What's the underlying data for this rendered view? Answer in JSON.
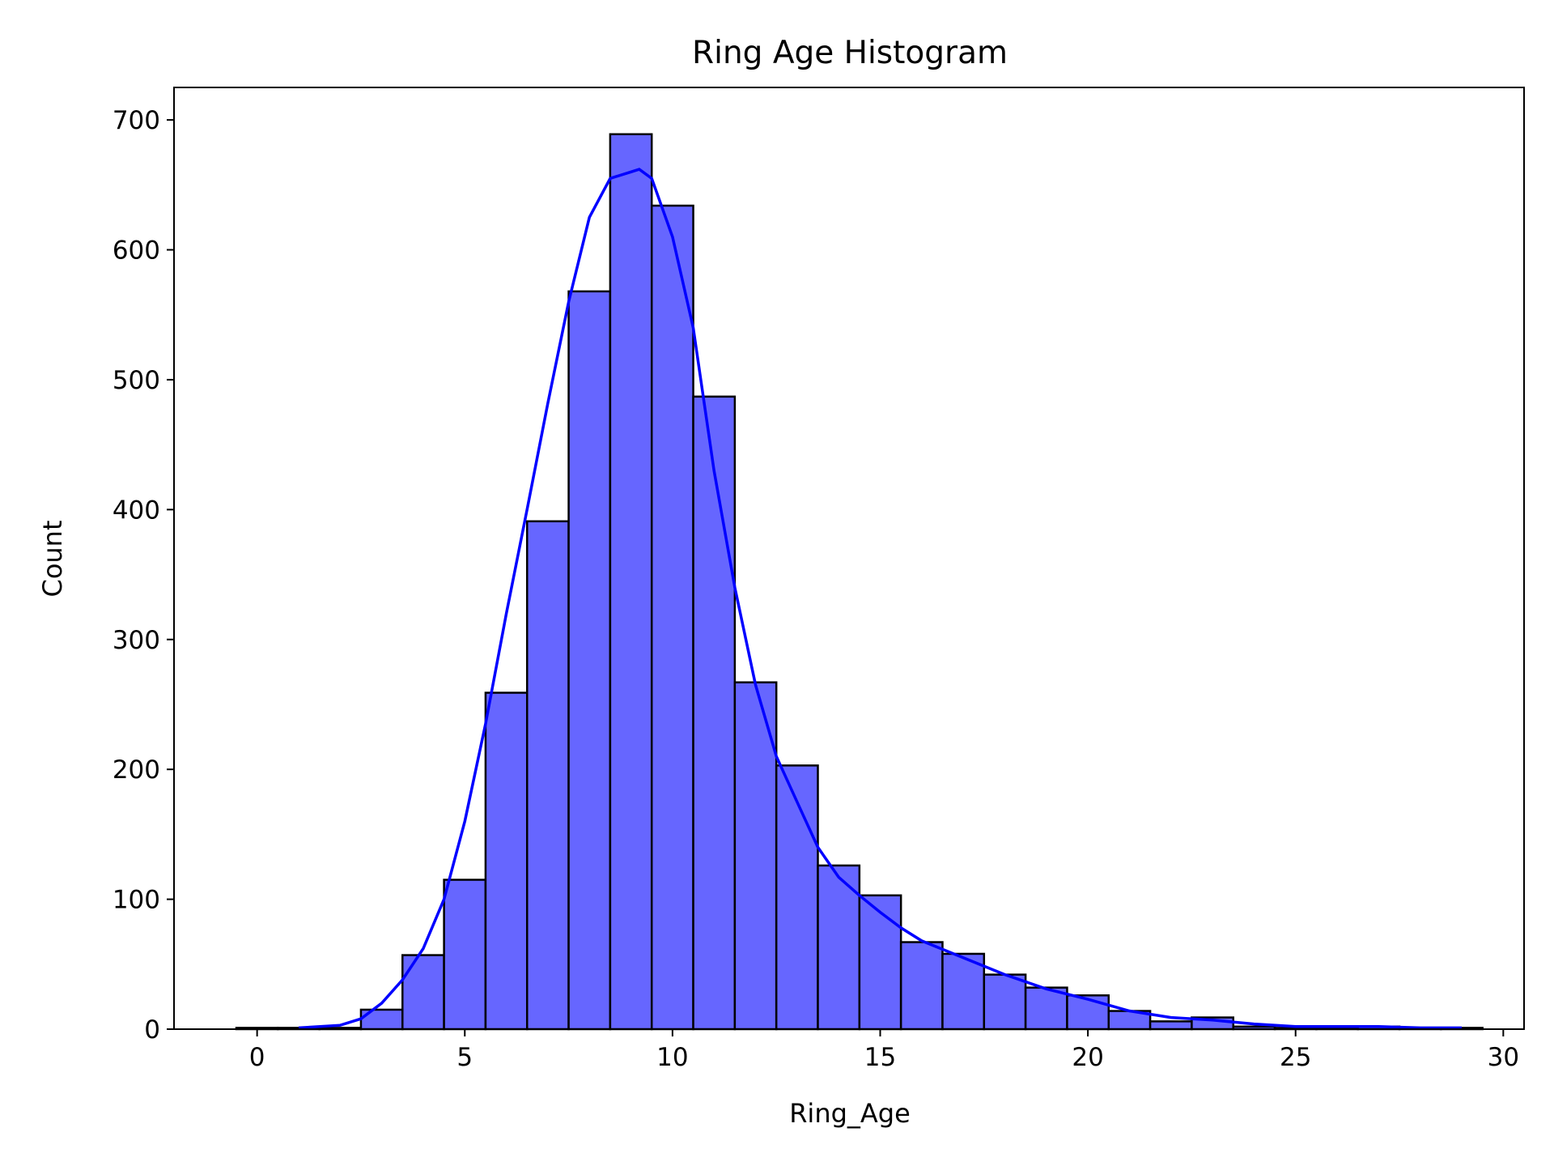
{
  "chart_data": {
    "type": "bar",
    "title": "Ring Age Histogram",
    "xlabel": "Ring_Age",
    "ylabel": "Count",
    "xlim": [
      -2,
      30.5
    ],
    "ylim": [
      0,
      725
    ],
    "xticks": [
      0,
      5,
      10,
      15,
      20,
      25,
      30
    ],
    "yticks": [
      0,
      100,
      200,
      300,
      400,
      500,
      600,
      700
    ],
    "grid": false,
    "bin_width": 1,
    "bins": [
      {
        "x0": -0.5,
        "x1": 0.5,
        "count": 1
      },
      {
        "x0": 0.5,
        "x1": 1.5,
        "count": 1
      },
      {
        "x0": 1.5,
        "x1": 2.5,
        "count": 1
      },
      {
        "x0": 2.5,
        "x1": 3.5,
        "count": 15
      },
      {
        "x0": 3.5,
        "x1": 4.5,
        "count": 57
      },
      {
        "x0": 4.5,
        "x1": 5.5,
        "count": 115
      },
      {
        "x0": 5.5,
        "x1": 6.5,
        "count": 259
      },
      {
        "x0": 6.5,
        "x1": 7.5,
        "count": 391
      },
      {
        "x0": 7.5,
        "x1": 8.5,
        "count": 568
      },
      {
        "x0": 8.5,
        "x1": 9.5,
        "count": 689
      },
      {
        "x0": 9.5,
        "x1": 10.5,
        "count": 634
      },
      {
        "x0": 10.5,
        "x1": 11.5,
        "count": 487
      },
      {
        "x0": 11.5,
        "x1": 12.5,
        "count": 267
      },
      {
        "x0": 12.5,
        "x1": 13.5,
        "count": 203
      },
      {
        "x0": 13.5,
        "x1": 14.5,
        "count": 126
      },
      {
        "x0": 14.5,
        "x1": 15.5,
        "count": 103
      },
      {
        "x0": 15.5,
        "x1": 16.5,
        "count": 67
      },
      {
        "x0": 16.5,
        "x1": 17.5,
        "count": 58
      },
      {
        "x0": 17.5,
        "x1": 18.5,
        "count": 42
      },
      {
        "x0": 18.5,
        "x1": 19.5,
        "count": 32
      },
      {
        "x0": 19.5,
        "x1": 20.5,
        "count": 26
      },
      {
        "x0": 20.5,
        "x1": 21.5,
        "count": 14
      },
      {
        "x0": 21.5,
        "x1": 22.5,
        "count": 6
      },
      {
        "x0": 22.5,
        "x1": 23.5,
        "count": 9
      },
      {
        "x0": 23.5,
        "x1": 24.5,
        "count": 2
      },
      {
        "x0": 24.5,
        "x1": 25.5,
        "count": 1
      },
      {
        "x0": 25.5,
        "x1": 26.5,
        "count": 1
      },
      {
        "x0": 26.5,
        "x1": 27.5,
        "count": 2
      },
      {
        "x0": 27.5,
        "x1": 28.5,
        "count": 1
      },
      {
        "x0": 28.5,
        "x1": 29.5,
        "count": 1
      }
    ],
    "kde": {
      "color": "#0000ff",
      "x": [
        1.0,
        2.0,
        2.5,
        3.0,
        3.5,
        4.0,
        4.5,
        5.0,
        5.5,
        6.0,
        6.5,
        7.0,
        7.5,
        8.0,
        8.5,
        9.0,
        9.2,
        9.5,
        10.0,
        10.5,
        11.0,
        11.5,
        12.0,
        12.5,
        13.0,
        13.5,
        14.0,
        14.5,
        15.0,
        15.5,
        16.0,
        17.0,
        18.0,
        19.0,
        20.0,
        21.0,
        22.0,
        23.0,
        24.0,
        25.0,
        26.0,
        27.0,
        28.0,
        29.0
      ],
      "y": [
        1,
        3,
        8,
        20,
        38,
        62,
        100,
        160,
        235,
        320,
        400,
        482,
        560,
        625,
        655,
        660,
        662,
        655,
        610,
        540,
        430,
        340,
        265,
        210,
        175,
        140,
        117,
        103,
        90,
        78,
        68,
        55,
        42,
        31,
        23,
        14,
        9,
        7,
        4,
        2,
        2,
        2,
        1,
        1
      ]
    },
    "colors": {
      "bar_fill": "#6666ff",
      "bar_edge": "#000000",
      "kde_line": "#0000ff"
    }
  }
}
